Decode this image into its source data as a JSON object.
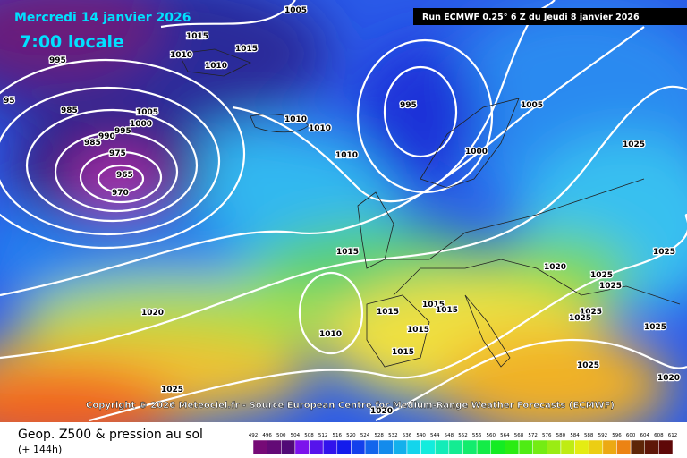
{
  "header": {
    "date": "Mercredi 14 janvier 2026",
    "time": "7:00 locale",
    "run": "Run ECMWF 0.25° 6 Z du Jeudi 8 janvier 2026"
  },
  "map": {
    "copyright": "Copyright © 2026 Meteociel.fr - Source European Centre for Medium-Range Weather Forecasts (ECMWF)",
    "isobar_labels": [
      1005,
      1015,
      1010,
      1010,
      1015,
      995,
      985,
      975,
      965,
      970,
      1005,
      1000,
      995,
      990,
      985,
      1010,
      1010,
      1010,
      995,
      1000,
      1005,
      1025,
      1015,
      1025,
      1020,
      1025,
      1025,
      1020,
      1015,
      1015,
      1015,
      1015,
      1010,
      1015,
      1025,
      1025,
      1025,
      1025,
      1020,
      1025,
      1020,
      95
    ]
  },
  "footer": {
    "title": "Geop. Z500 & pression au sol",
    "lead": "(+ 144h)",
    "scale": [
      492,
      496,
      500,
      504,
      508,
      512,
      516,
      520,
      524,
      528,
      532,
      536,
      540,
      544,
      548,
      552,
      556,
      560,
      564,
      568,
      572,
      576,
      580,
      584,
      588,
      592,
      596,
      600,
      604,
      608,
      612
    ]
  }
}
